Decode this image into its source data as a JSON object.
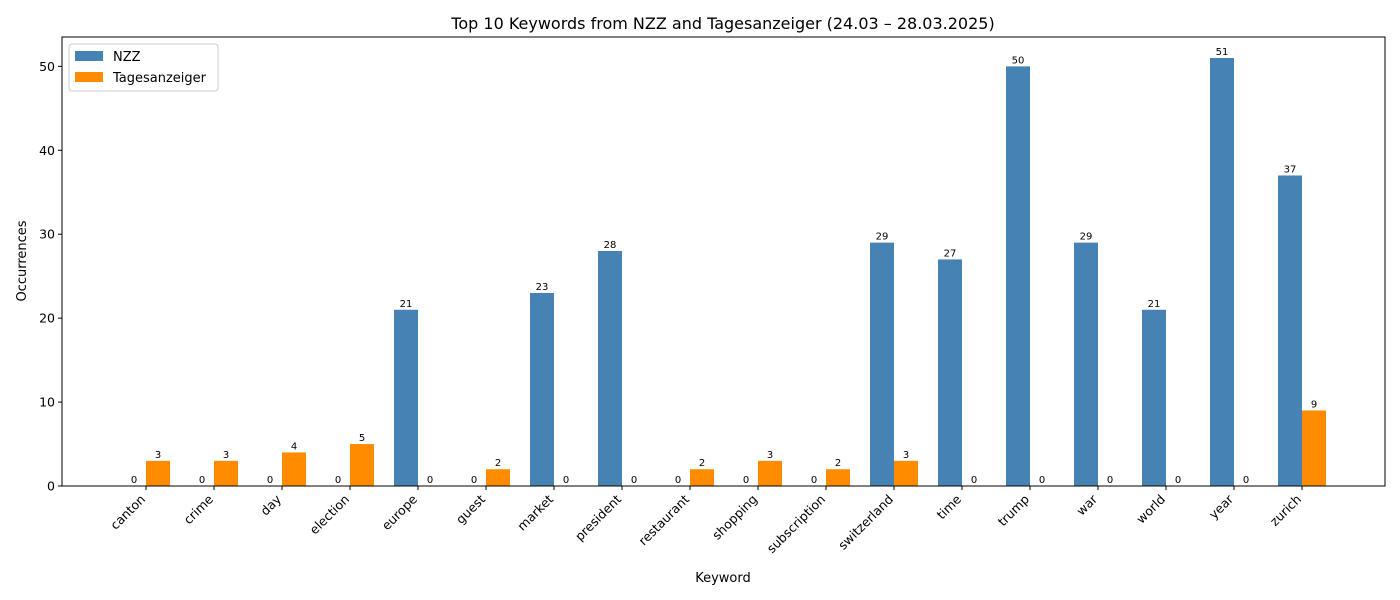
{
  "chart_data": {
    "type": "bar",
    "title": "Top 10 Keywords from NZZ and Tagesanzeiger (24.03 – 28.03.2025)",
    "xlabel": "Keyword",
    "ylabel": "Occurrences",
    "ylim": [
      0,
      53.5
    ],
    "yticks": [
      0,
      10,
      20,
      30,
      40,
      50
    ],
    "categories": [
      "canton",
      "crime",
      "day",
      "election",
      "europe",
      "guest",
      "market",
      "president",
      "restaurant",
      "shopping",
      "subscription",
      "switzerland",
      "time",
      "trump",
      "war",
      "world",
      "year",
      "zurich"
    ],
    "series": [
      {
        "name": "NZZ",
        "color": "#4682b4",
        "values": [
          0,
          0,
          0,
          0,
          21,
          0,
          23,
          28,
          0,
          0,
          0,
          29,
          27,
          50,
          29,
          21,
          51,
          37
        ]
      },
      {
        "name": "Tagesanzeiger",
        "color": "#ff8c00",
        "values": [
          3,
          3,
          4,
          5,
          0,
          2,
          0,
          0,
          2,
          3,
          2,
          3,
          0,
          0,
          0,
          0,
          0,
          9
        ]
      }
    ],
    "legend_position": "top-left",
    "grid": false
  }
}
